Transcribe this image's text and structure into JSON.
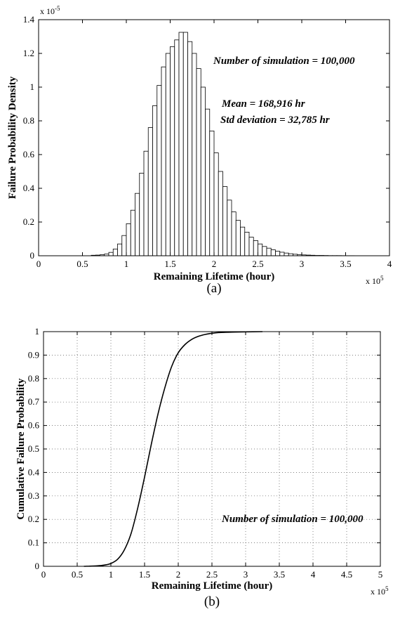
{
  "chart_data": [
    {
      "type": "bar",
      "caption": "(a)",
      "xlabel": "Remaining Lifetime (hour)",
      "ylabel": "Failure Probability Density",
      "x_multiplier": "x 10",
      "x_multiplier_exp": "5",
      "y_multiplier": "x 10",
      "y_multiplier_exp": "-5",
      "xlim": [
        0,
        4
      ],
      "ylim": [
        0,
        1.4
      ],
      "xticks": [
        "0",
        "0.5",
        "1",
        "1.5",
        "2",
        "2.5",
        "3",
        "3.5",
        "4"
      ],
      "yticks": [
        "0",
        "0.2",
        "0.4",
        "0.6",
        "0.8",
        "1",
        "1.2",
        "1.4"
      ],
      "annotations": {
        "sims": "Number of simulation = 100,000",
        "mean": "Mean = 168,916 hr",
        "std": "Std deviation = 32,785 hr"
      },
      "grid": false,
      "bin_width": 0.05,
      "bin_start": 0.6,
      "values": [
        0.003,
        0.004,
        0.006,
        0.01,
        0.02,
        0.04,
        0.07,
        0.12,
        0.19,
        0.27,
        0.37,
        0.49,
        0.62,
        0.76,
        0.89,
        1.01,
        1.12,
        1.2,
        1.24,
        1.28,
        1.325,
        1.325,
        1.27,
        1.2,
        1.11,
        1.0,
        0.87,
        0.74,
        0.61,
        0.5,
        0.41,
        0.33,
        0.26,
        0.21,
        0.17,
        0.14,
        0.11,
        0.09,
        0.07,
        0.055,
        0.045,
        0.035,
        0.027,
        0.021,
        0.016,
        0.012,
        0.009,
        0.007,
        0.005,
        0.004,
        0.003,
        0.002,
        0.002,
        0.0015,
        0.001,
        0.001,
        0.001,
        0.0007,
        0.0005,
        0.0005,
        0.0003,
        0.0003,
        0.0002,
        0.0002,
        0.0001
      ]
    },
    {
      "type": "line",
      "caption": "(b)",
      "xlabel": "Remaining Lifetime (hour)",
      "ylabel": "Cumulative Failure Probability",
      "x_multiplier": "x 10",
      "x_multiplier_exp": "5",
      "xlim": [
        0,
        5
      ],
      "ylim": [
        0,
        1
      ],
      "xticks": [
        "0",
        "0.5",
        "1",
        "1.5",
        "2",
        "2.5",
        "3",
        "3.5",
        "4",
        "4.5",
        "5"
      ],
      "yticks": [
        "0",
        "0.1",
        "0.2",
        "0.3",
        "0.4",
        "0.5",
        "0.6",
        "0.7",
        "0.8",
        "0.9",
        "1"
      ],
      "annotations": {
        "sims": "Number of simulation = 100,000"
      },
      "grid": true,
      "x": [
        0.6,
        0.8,
        0.9,
        1.0,
        1.1,
        1.2,
        1.3,
        1.4,
        1.5,
        1.6,
        1.7,
        1.8,
        1.9,
        2.0,
        2.1,
        2.2,
        2.3,
        2.4,
        2.5,
        2.6,
        2.8,
        3.0,
        3.25
      ],
      "y": [
        0.0,
        0.002,
        0.005,
        0.012,
        0.03,
        0.07,
        0.14,
        0.25,
        0.38,
        0.52,
        0.65,
        0.76,
        0.85,
        0.91,
        0.945,
        0.967,
        0.98,
        0.988,
        0.993,
        0.996,
        0.998,
        0.999,
        1.0
      ]
    }
  ]
}
